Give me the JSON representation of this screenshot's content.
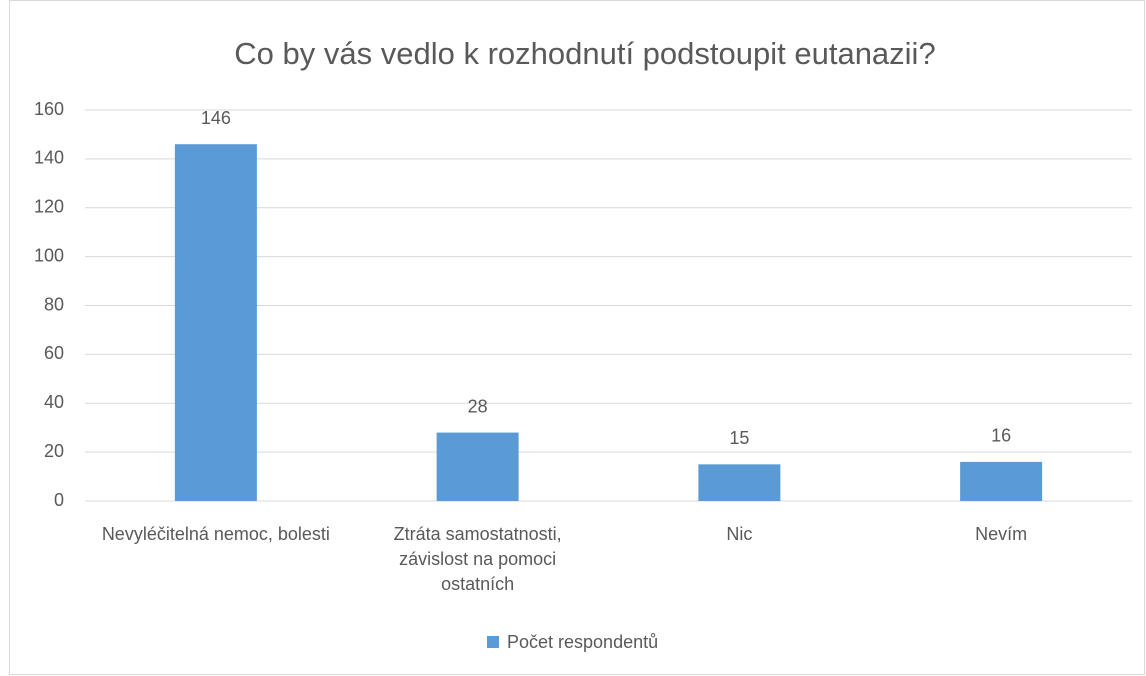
{
  "chart_data": {
    "type": "bar",
    "title": "Co by vás vedlo k rozhodnutí podstoupit eutanazii?",
    "categories": [
      "Nevyléčitelná nemoc, bolesti",
      "Ztráta samostatnosti, závislost na pomoci ostatních",
      "Nic",
      "Nevím"
    ],
    "series": [
      {
        "name": "Počet respondentů",
        "color": "#5b9bd5",
        "values": [
          146,
          28,
          15,
          16
        ]
      }
    ],
    "ylim": [
      0,
      160
    ],
    "yticks": [
      0,
      20,
      40,
      60,
      80,
      100,
      120,
      140,
      160
    ],
    "grid": true,
    "legend": "bottom"
  }
}
